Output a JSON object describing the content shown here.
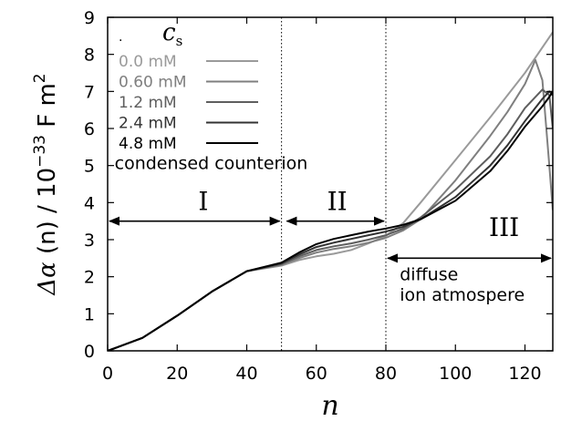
{
  "chart_data": {
    "type": "line",
    "xlabel": "n",
    "ylabel": {
      "delta": "Δ",
      "alpha": "α",
      "arg": " (n) / 10",
      "exp": "−33",
      "unit": " F m",
      "unit_exp": "2"
    },
    "xlim": [
      0,
      128
    ],
    "ylim": [
      0,
      9
    ],
    "x_ticks": [
      0,
      20,
      40,
      60,
      80,
      100,
      120
    ],
    "y_ticks": [
      0,
      1,
      2,
      3,
      4,
      5,
      6,
      7,
      8,
      9
    ],
    "grid": false,
    "legend": {
      "title_main": "c",
      "title_sub": "s",
      "placement": "top-left"
    },
    "vertical_lines": [
      50,
      80
    ],
    "annotations": [
      {
        "text": "condensed counterion",
        "x": 2,
        "y": 4.9
      },
      {
        "text": "diffuse",
        "x": 84,
        "y": 1.9
      },
      {
        "text": "ion atmospere",
        "x": 84,
        "y": 1.35
      }
    ],
    "regions": [
      {
        "label": "I",
        "x": 27.5,
        "y": 3.8,
        "arrow": [
          0,
          50
        ],
        "arrow_y": 3.5
      },
      {
        "label": "II",
        "x": 66,
        "y": 3.8,
        "arrow": [
          51,
          80
        ],
        "arrow_y": 3.5
      },
      {
        "label": "III",
        "x": 114,
        "y": 3.1,
        "arrow": [
          80,
          128
        ],
        "arrow_y": 2.5
      }
    ],
    "series": [
      {
        "name": "0.0 mM",
        "color": "#9a9a9a",
        "x": [
          0,
          10,
          20,
          30,
          40,
          50,
          55,
          60,
          65,
          70,
          75,
          80,
          85,
          90,
          100,
          110,
          120,
          128
        ],
        "y": [
          0,
          0.35,
          0.95,
          1.6,
          2.15,
          2.3,
          2.45,
          2.55,
          2.62,
          2.72,
          2.9,
          3.1,
          3.45,
          4.0,
          5.15,
          6.3,
          7.5,
          8.6
        ]
      },
      {
        "name": "0.60 mM",
        "color": "#7f7f7f",
        "x": [
          0,
          10,
          20,
          30,
          40,
          50,
          55,
          60,
          65,
          70,
          75,
          80,
          85,
          90,
          100,
          110,
          115,
          120,
          123,
          125,
          127,
          128
        ],
        "y": [
          0,
          0.35,
          0.95,
          1.6,
          2.15,
          2.32,
          2.5,
          2.65,
          2.75,
          2.82,
          2.92,
          3.05,
          3.25,
          3.55,
          4.6,
          5.8,
          6.45,
          7.2,
          7.85,
          7.3,
          5.0,
          3.8
        ]
      },
      {
        "name": "1.2 mM",
        "color": "#5e5e5e",
        "x": [
          0,
          10,
          20,
          30,
          40,
          50,
          55,
          60,
          65,
          70,
          75,
          80,
          85,
          90,
          100,
          110,
          115,
          120,
          125,
          127,
          128
        ],
        "y": [
          0,
          0.35,
          0.95,
          1.6,
          2.15,
          2.34,
          2.55,
          2.72,
          2.82,
          2.9,
          3.0,
          3.12,
          3.3,
          3.6,
          4.35,
          5.25,
          5.85,
          6.55,
          7.05,
          6.9,
          6.0
        ]
      },
      {
        "name": "2.4 mM",
        "color": "#333333",
        "x": [
          0,
          10,
          20,
          30,
          40,
          50,
          55,
          60,
          65,
          70,
          75,
          80,
          85,
          90,
          100,
          110,
          115,
          120,
          125,
          127,
          128
        ],
        "y": [
          0,
          0.35,
          0.95,
          1.6,
          2.15,
          2.36,
          2.6,
          2.8,
          2.92,
          3.02,
          3.12,
          3.22,
          3.35,
          3.55,
          4.15,
          5.0,
          5.55,
          6.2,
          6.8,
          7.0,
          6.9
        ]
      },
      {
        "name": "4.8 mM",
        "color": "#000000",
        "x": [
          0,
          10,
          20,
          30,
          40,
          50,
          55,
          60,
          65,
          70,
          75,
          80,
          85,
          90,
          100,
          110,
          115,
          120,
          125,
          127,
          128
        ],
        "y": [
          0,
          0.35,
          0.95,
          1.6,
          2.15,
          2.38,
          2.65,
          2.88,
          3.02,
          3.12,
          3.22,
          3.3,
          3.4,
          3.55,
          4.05,
          4.85,
          5.4,
          6.05,
          6.6,
          6.85,
          7.0
        ]
      }
    ]
  }
}
